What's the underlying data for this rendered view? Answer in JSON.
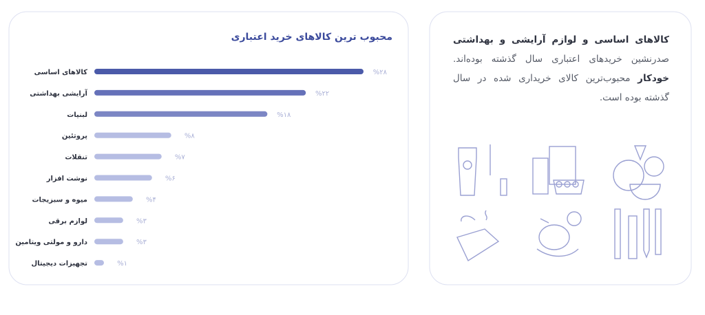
{
  "chart_data": {
    "type": "bar",
    "orientation": "horizontal",
    "title": "محبوب ترین کالاهای خرید اعتباری",
    "categories": [
      "کالاهای اساسی",
      "آرایشی بهداشتی",
      "لبنیات",
      "پروتئین",
      "تنقلات",
      "نوشت افزار",
      "میوه و سبزیجات",
      "لوازم برقی",
      "دارو و مولتی ویتامین",
      "تجهیزات دیجیتال"
    ],
    "values": [
      28,
      22,
      18,
      8,
      7,
      6,
      4,
      3,
      3,
      1
    ],
    "value_labels": [
      "%۲۸",
      "%۲۲",
      "%۱۸",
      "%۸",
      "%۷",
      "%۶",
      "%۴",
      "%۳",
      "%۳",
      "%۱"
    ],
    "colors": [
      "#4b5aa9",
      "#6571b9",
      "#7c86c4",
      "#b6bde3",
      "#b6bde3",
      "#b6bde3",
      "#b6bde3",
      "#b6bde3",
      "#b6bde3",
      "#b6bde3"
    ]
  },
  "summary": {
    "bold_1": "کالاهای اساسی و لوازم آرایشی و بهداشتی",
    "text_1": "صدرنشین خریدهای اعتباری سال گذشته بوده‌اند.",
    "bold_2": "خودکار",
    "text_2": "محبوب‌ترین کالای خریداری شده در سال گذشته بوده است."
  }
}
